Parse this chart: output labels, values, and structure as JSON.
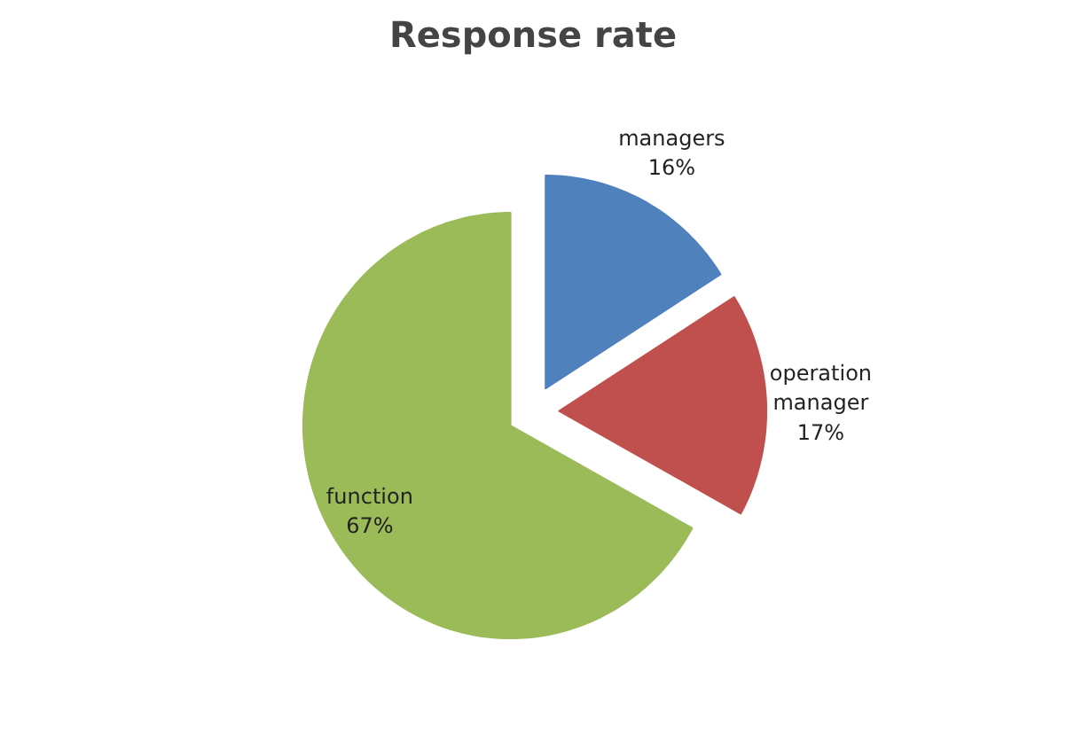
{
  "chart_data": {
    "type": "pie",
    "title": "Response rate",
    "categories": [
      "managers",
      "operation manager",
      "function"
    ],
    "values": [
      16,
      17,
      67
    ],
    "colors": [
      "#4f81bd",
      "#c0504d",
      "#9bbb59"
    ],
    "value_labels": [
      "16%",
      "17%",
      "67%"
    ]
  }
}
